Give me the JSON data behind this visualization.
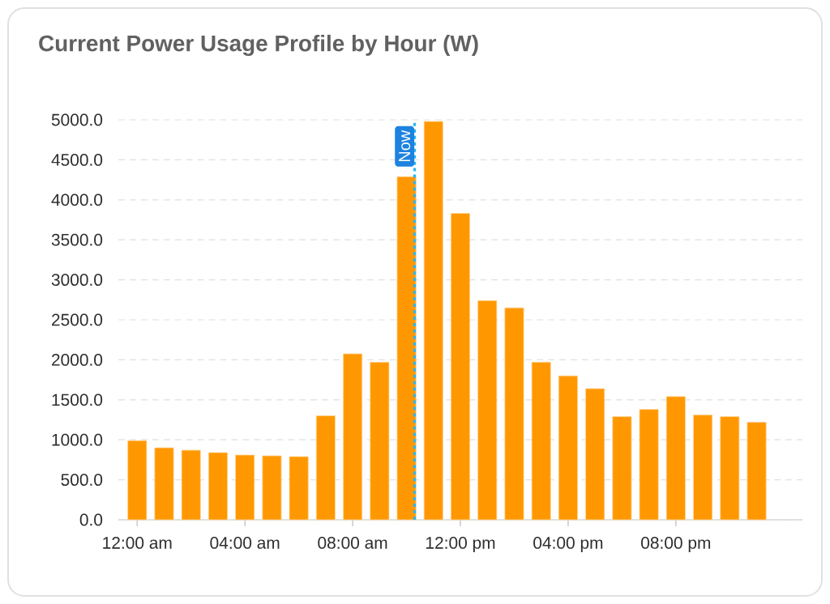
{
  "chart_data": {
    "type": "bar",
    "title": "Current Power Usage Profile by Hour (W)",
    "x": [
      0,
      1,
      2,
      3,
      4,
      5,
      6,
      7,
      8,
      9,
      10,
      11,
      12,
      13,
      14,
      15,
      16,
      17,
      18,
      19,
      20,
      21,
      22,
      23
    ],
    "values": [
      990,
      900,
      870,
      840,
      810,
      800,
      790,
      1300,
      2075,
      1970,
      4290,
      4980,
      3830,
      2740,
      2650,
      1970,
      1800,
      1640,
      1290,
      1380,
      1540,
      1310,
      1290,
      1220
    ],
    "color": "#ff9800",
    "xlim": [
      -0.7,
      24.7
    ],
    "xticks": [
      {
        "value": 0,
        "label": "12:00 am"
      },
      {
        "value": 4,
        "label": "04:00 am"
      },
      {
        "value": 8,
        "label": "08:00 am"
      },
      {
        "value": 12,
        "label": "12:00 pm"
      },
      {
        "value": 16,
        "label": "04:00 pm"
      },
      {
        "value": 20,
        "label": "08:00 pm"
      }
    ],
    "ylim": [
      0,
      5000
    ],
    "yticks": [
      {
        "value": 0,
        "label": "0.0"
      },
      {
        "value": 500,
        "label": "500.0"
      },
      {
        "value": 1000,
        "label": "1000.0"
      },
      {
        "value": 1500,
        "label": "1500.0"
      },
      {
        "value": 2000,
        "label": "2000.0"
      },
      {
        "value": 2500,
        "label": "2500.0"
      },
      {
        "value": 3000,
        "label": "3000.0"
      },
      {
        "value": 3500,
        "label": "3500.0"
      },
      {
        "value": 4000,
        "label": "4000.0"
      },
      {
        "value": 4500,
        "label": "4500.0"
      },
      {
        "value": 5000,
        "label": "5000.0"
      }
    ],
    "grid": "y",
    "ref_lines": [
      {
        "axis": "x",
        "value": 10.3,
        "label": "Now",
        "color": "#29b6f6",
        "line_style": "dotted"
      }
    ]
  }
}
